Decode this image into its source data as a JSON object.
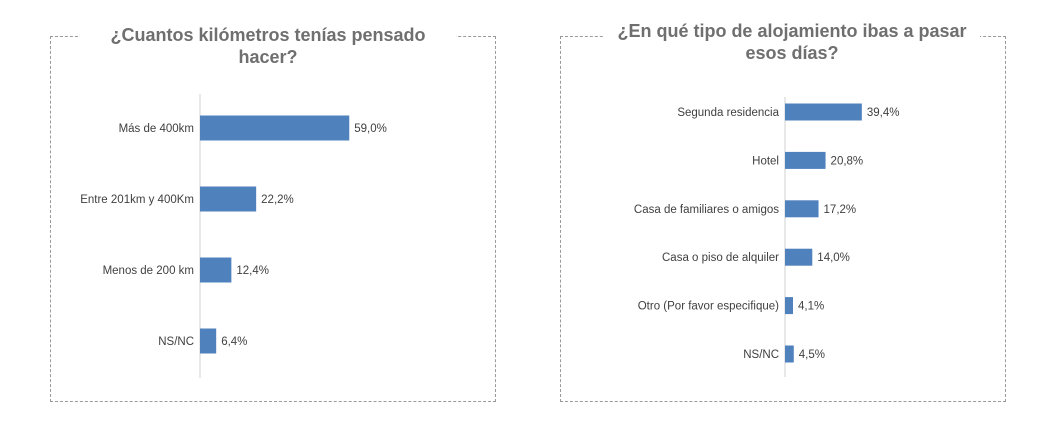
{
  "colors": {
    "bar": "#4f81bd",
    "axis": "#d0d0d0",
    "text": "#404040",
    "title": "#6f6f6f"
  },
  "chart_data": [
    {
      "type": "bar",
      "orientation": "horizontal",
      "title": "¿Cuantos kilómetros tenías pensado hacer?",
      "categories": [
        "Más de 400km",
        "Entre 201km y 400Km",
        "Menos de 200 km",
        "NS/NC"
      ],
      "values": [
        59.0,
        22.2,
        12.4,
        6.4
      ],
      "labels": [
        "59,0%",
        "22,2%",
        "12,4%",
        "6,4%"
      ],
      "unit": "%",
      "grid": false,
      "legend": "none"
    },
    {
      "type": "bar",
      "orientation": "horizontal",
      "title": "¿En qué tipo de alojamiento ibas a pasar esos días?",
      "categories": [
        "Segunda residencia",
        "Hotel",
        "Casa de familiares o amigos",
        "Casa o piso de alquiler",
        "Otro (Por favor especifique)",
        "NS/NC"
      ],
      "values": [
        39.4,
        20.8,
        17.2,
        14.0,
        4.1,
        4.5
      ],
      "labels": [
        "39,4%",
        "20,8%",
        "17,2%",
        "14,0%",
        "4,1%",
        "4,5%"
      ],
      "unit": "%",
      "grid": false,
      "legend": "none"
    }
  ]
}
